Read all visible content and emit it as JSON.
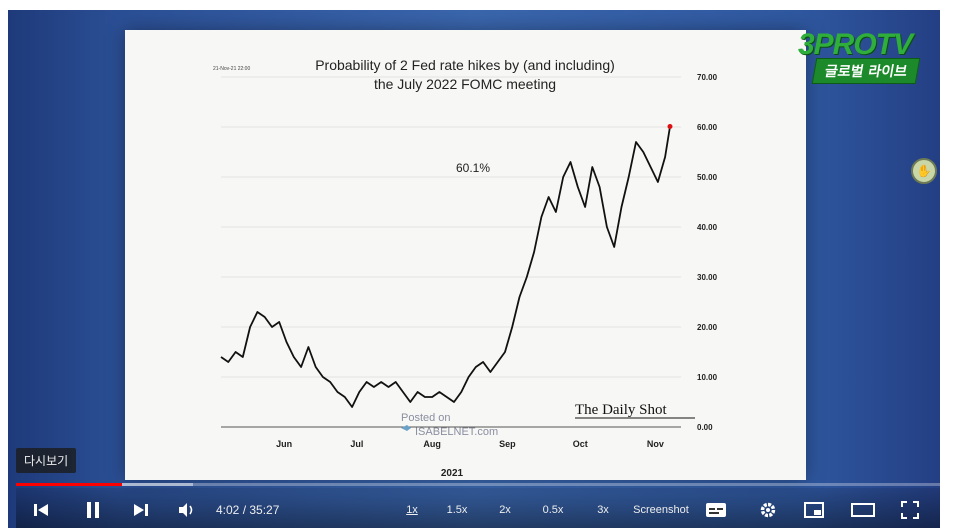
{
  "player": {
    "replay_badge": "다시보기",
    "progress_played": 0.114,
    "progress_loaded": 0.19,
    "time": "4:02 / 35:27",
    "speed_options": [
      "1x",
      "1.5x",
      "2x",
      "0.5x",
      "3x",
      "Screenshot"
    ],
    "icons": [
      "previous-icon",
      "pause-icon",
      "next-icon",
      "volume-icon",
      "subtitles-icon",
      "settings-gear-icon",
      "miniplayer-icon",
      "theater-mode-icon",
      "fullscreen-icon"
    ]
  },
  "branding": {
    "line1": "3PROTV",
    "line2": "글로벌 라이브"
  },
  "slide": {
    "stamp": "21-Nov-21 22:00",
    "title_line1": "Probability of 2 Fed rate hikes by (and including)",
    "title_line2": "the July 2022 FOMC meeting",
    "callout": "60.1%",
    "year": "2021",
    "source": "The Daily Shot",
    "watermark_line1": "Posted on",
    "watermark_line2": "ISABELNET.com"
  },
  "chart_data": {
    "type": "line",
    "title": "Probability of 2 Fed rate hikes by (and including) the July 2022 FOMC meeting",
    "xlabel": "2021",
    "ylabel": "",
    "x_tick_labels": [
      "Jun",
      "Jul",
      "Aug",
      "Sep",
      "Oct",
      "Nov"
    ],
    "y_tick_labels": [
      "0.00",
      "10.00",
      "20.00",
      "30.00",
      "40.00",
      "50.00",
      "60.00",
      "70.00"
    ],
    "ylim": [
      0,
      70
    ],
    "grid": true,
    "y_axis_position": "right",
    "annotation": "60.1%",
    "series": [
      {
        "name": "",
        "x": [
          "2021-05-20",
          "2021-05-23",
          "2021-05-26",
          "2021-05-29",
          "2021-06-01",
          "2021-06-04",
          "2021-06-07",
          "2021-06-10",
          "2021-06-13",
          "2021-06-16",
          "2021-06-19",
          "2021-06-22",
          "2021-06-25",
          "2021-06-28",
          "2021-07-01",
          "2021-07-04",
          "2021-07-07",
          "2021-07-10",
          "2021-07-13",
          "2021-07-16",
          "2021-07-19",
          "2021-07-22",
          "2021-07-25",
          "2021-07-28",
          "2021-07-31",
          "2021-08-03",
          "2021-08-06",
          "2021-08-09",
          "2021-08-12",
          "2021-08-15",
          "2021-08-18",
          "2021-08-21",
          "2021-08-24",
          "2021-08-27",
          "2021-08-30",
          "2021-09-02",
          "2021-09-05",
          "2021-09-08",
          "2021-09-11",
          "2021-09-14",
          "2021-09-17",
          "2021-09-20",
          "2021-09-23",
          "2021-09-26",
          "2021-09-29",
          "2021-10-02",
          "2021-10-05",
          "2021-10-08",
          "2021-10-11",
          "2021-10-14",
          "2021-10-17",
          "2021-10-20",
          "2021-10-23",
          "2021-10-26",
          "2021-10-29",
          "2021-11-01",
          "2021-11-04",
          "2021-11-07",
          "2021-11-10",
          "2021-11-13",
          "2021-11-16",
          "2021-11-19",
          "2021-11-21"
        ],
        "values": [
          14,
          13,
          15,
          14,
          20,
          23,
          22,
          20,
          21,
          17,
          14,
          12,
          16,
          12,
          10,
          9,
          7,
          6,
          4,
          7,
          9,
          8,
          9,
          8,
          9,
          7,
          5,
          7,
          6,
          6,
          7,
          6,
          5,
          7,
          10,
          12,
          13,
          11,
          13,
          15,
          20,
          26,
          30,
          35,
          42,
          46,
          43,
          50,
          53,
          48,
          44,
          52,
          48,
          40,
          36,
          44,
          50,
          57,
          55,
          52,
          49,
          54,
          60.1
        ]
      }
    ]
  }
}
